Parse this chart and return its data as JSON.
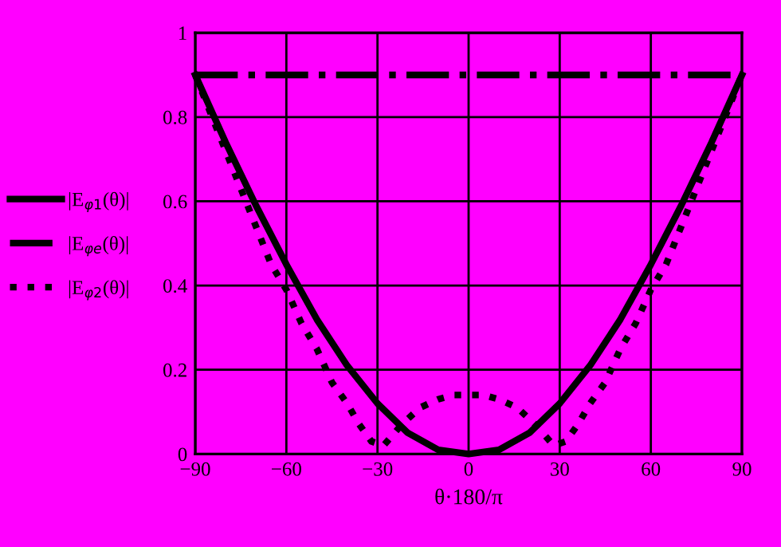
{
  "chart_data": {
    "type": "line",
    "xlabel": "θ·180/π",
    "xlim": [
      -90,
      90
    ],
    "xticks": [
      {
        "value": -90,
        "label": "−90"
      },
      {
        "value": -60,
        "label": "−60"
      },
      {
        "value": -30,
        "label": "−30"
      },
      0,
      30,
      60,
      90
    ],
    "ylim": [
      0,
      1
    ],
    "yticks": [
      0,
      0.2,
      0.4,
      0.6,
      0.8,
      1
    ],
    "grid": true,
    "legend": "left",
    "series": [
      {
        "name": "|E$_{φ1}$(θ)|",
        "color": "#000000",
        "line_style": "solid",
        "x": [
          -90,
          -80,
          -70,
          -60,
          -50,
          -40,
          -30,
          -20,
          -10,
          0,
          10,
          20,
          30,
          40,
          50,
          60,
          70,
          80,
          90
        ],
        "values": [
          0.9,
          0.74,
          0.59,
          0.45,
          0.32,
          0.21,
          0.12,
          0.05,
          0.01,
          0,
          0.01,
          0.05,
          0.12,
          0.21,
          0.32,
          0.45,
          0.59,
          0.74,
          0.9
        ]
      },
      {
        "name": "|E$_{φe}$(θ)|",
        "color": "#000000",
        "line_style": "dashdot",
        "x": [
          -90,
          90
        ],
        "values": [
          0.9,
          0.9
        ]
      },
      {
        "name": "|E$_{φ2}$(θ)|",
        "color": "#000000",
        "line_style": "dotted",
        "x": [
          -90,
          -85,
          -80,
          -75,
          -70,
          -65,
          -60,
          -55,
          -50,
          -45,
          -40,
          -36,
          -32,
          -28,
          -22,
          -16,
          -10,
          -5,
          0,
          5,
          10,
          16,
          22,
          28,
          32,
          36,
          40,
          45,
          50,
          55,
          60,
          65,
          70,
          75,
          80,
          85,
          90
        ],
        "values": [
          0.9,
          0.81,
          0.72,
          0.63,
          0.54,
          0.45,
          0.39,
          0.31,
          0.25,
          0.17,
          0.12,
          0.07,
          0.03,
          0.02,
          0.07,
          0.11,
          0.13,
          0.14,
          0.14,
          0.14,
          0.13,
          0.11,
          0.07,
          0.02,
          0.03,
          0.07,
          0.12,
          0.17,
          0.25,
          0.31,
          0.39,
          0.45,
          0.54,
          0.63,
          0.72,
          0.81,
          0.9
        ]
      }
    ]
  }
}
